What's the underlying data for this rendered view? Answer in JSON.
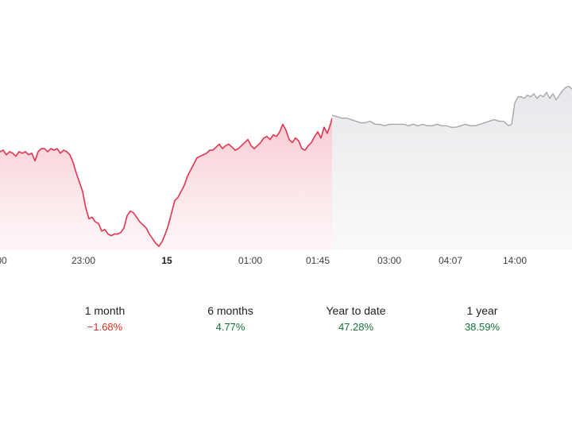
{
  "chart_data": {
    "type": "area",
    "x_ticks": [
      {
        "label": "00",
        "bold": false
      },
      {
        "label": "23:00",
        "bold": false
      },
      {
        "label": "15",
        "bold": true
      },
      {
        "label": "01:00",
        "bold": false
      },
      {
        "label": "01:45",
        "bold": false
      },
      {
        "label": "03:00",
        "bold": false
      },
      {
        "label": "04:07",
        "bold": false
      },
      {
        "label": "14:00",
        "bold": false
      }
    ],
    "ylim": [
      0,
      100
    ],
    "grid": false,
    "legend": "none",
    "series": [
      {
        "color": "#e3334f",
        "fill": "#fbdde2",
        "x": [
          0,
          4,
          8,
          12,
          16,
          20,
          24,
          28,
          32,
          36,
          40,
          44,
          48,
          52,
          56,
          60,
          64,
          68,
          72,
          76,
          80,
          84,
          88,
          92,
          96,
          100,
          104,
          108,
          112,
          116,
          120,
          124,
          128,
          132,
          136,
          140,
          144,
          148,
          152,
          156,
          160,
          164,
          168,
          172,
          176,
          180,
          184,
          188,
          192,
          196,
          200,
          204,
          208,
          212,
          216,
          220,
          224,
          228,
          232,
          236,
          240,
          244,
          248,
          252,
          256,
          260,
          264,
          268,
          272,
          276,
          280,
          284,
          288,
          292,
          296,
          300,
          304,
          308,
          312,
          316,
          320,
          324,
          328,
          332,
          336,
          340,
          344,
          348,
          352,
          356,
          360,
          364,
          368,
          372,
          376,
          380,
          384,
          388,
          392,
          396,
          400,
          404,
          408,
          412,
          416,
          418
        ],
        "values": [
          62,
          63,
          60,
          62,
          61,
          59,
          62,
          61,
          62,
          60,
          61,
          56,
          62,
          64,
          64,
          62,
          64,
          63,
          64,
          61,
          63,
          62,
          60,
          55,
          48,
          42,
          36,
          25,
          18,
          19,
          16,
          15,
          10,
          11,
          8,
          7,
          8,
          8,
          9,
          12,
          20,
          23,
          22,
          19,
          16,
          14,
          12,
          8,
          5,
          2,
          0,
          3,
          8,
          14,
          22,
          30,
          32,
          36,
          40,
          46,
          50,
          54,
          58,
          59,
          60,
          61,
          63,
          63,
          65,
          67,
          64,
          66,
          67,
          65,
          63,
          64,
          66,
          68,
          70,
          66,
          64,
          66,
          68,
          71,
          72,
          70,
          73,
          72,
          75,
          80,
          76,
          70,
          68,
          71,
          69,
          64,
          63,
          66,
          68,
          72,
          75,
          71,
          78,
          74,
          80,
          84
        ]
      },
      {
        "color": "#a8a8a8",
        "fill": "#eeeef1",
        "x": [
          418,
          424,
          430,
          436,
          442,
          448,
          454,
          460,
          466,
          472,
          478,
          484,
          490,
          496,
          502,
          508,
          514,
          520,
          526,
          532,
          538,
          544,
          550,
          556,
          562,
          568,
          574,
          580,
          586,
          592,
          598,
          604,
          610,
          616,
          622,
          628,
          634,
          640,
          644,
          648,
          652,
          656,
          660,
          664,
          668,
          672,
          676,
          680,
          684,
          688,
          692,
          696,
          700,
          704,
          708,
          712,
          716,
          720
        ],
        "values": [
          86,
          85,
          84,
          84,
          83,
          82,
          81,
          81,
          82,
          80,
          80,
          79,
          80,
          80,
          80,
          80,
          79,
          80,
          79,
          80,
          79,
          79,
          80,
          79,
          79,
          78,
          78,
          79,
          80,
          79,
          79,
          80,
          81,
          82,
          83,
          82,
          82,
          79,
          80,
          94,
          98,
          98,
          97,
          99,
          98,
          100,
          97,
          99,
          98,
          101,
          97,
          100,
          96,
          99,
          102,
          104,
          105,
          103
        ]
      }
    ]
  },
  "performance": [
    {
      "period": "1 month",
      "change": "−1.68%",
      "color": "#d93025"
    },
    {
      "period": "6 months",
      "change": "4.77%",
      "color": "#137333"
    },
    {
      "period": "Year to date",
      "change": "47.28%",
      "color": "#137333"
    },
    {
      "period": "1 year",
      "change": "38.59%",
      "color": "#137333"
    }
  ]
}
